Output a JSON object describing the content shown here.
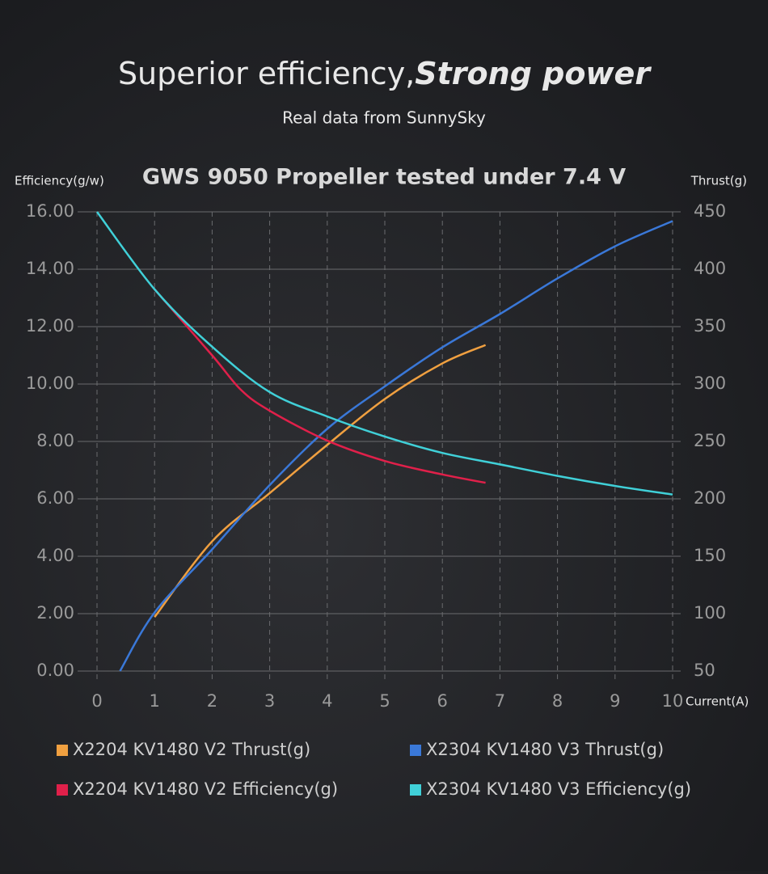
{
  "chart_data": {
    "type": "line",
    "title": "Superior efficiency,",
    "title_emphasis": "Strong power",
    "subtitle": "Real data from SunnySky",
    "chart_title": "GWS 9050 Propeller tested under 7.4 V",
    "y_label": "Efficiency(g/w)",
    "y2_label": "Thrust(g)",
    "x_label": "Current(A)",
    "xlim": [
      0,
      10
    ],
    "xticks": [
      0,
      1,
      2,
      3,
      4,
      5,
      6,
      7,
      8,
      9,
      10
    ],
    "ylim": [
      0,
      16
    ],
    "yticks": [
      {
        "value": 0,
        "label": "0.00"
      },
      {
        "value": 2,
        "label": "2.00"
      },
      {
        "value": 4,
        "label": "4.00"
      },
      {
        "value": 6,
        "label": "6.00"
      },
      {
        "value": 8,
        "label": "8.00"
      },
      {
        "value": 10,
        "label": "10.00"
      },
      {
        "value": 12,
        "label": "12.00"
      },
      {
        "value": 14,
        "label": "14.00"
      },
      {
        "value": 16,
        "label": "16.00"
      }
    ],
    "y2lim": [
      50,
      450
    ],
    "y2ticks": [
      50,
      100,
      150,
      200,
      250,
      300,
      350,
      400,
      450
    ],
    "grid": true,
    "series": [
      {
        "name": "X2204 KV1480 V2 Thrust(g)",
        "color": "#f0a040",
        "axis": "y2",
        "x": [
          1,
          2,
          3,
          4,
          5,
          6,
          6.75
        ],
        "values": [
          97,
          163,
          205,
          247,
          287,
          318,
          334
        ]
      },
      {
        "name": "X2304 KV1480 V3 Thrust(g)",
        "color": "#3a78d8",
        "axis": "y2",
        "x": [
          0.4,
          1,
          2,
          3,
          4,
          5,
          6,
          7,
          8,
          9,
          10
        ],
        "values": [
          50,
          101,
          156,
          212,
          261,
          298,
          332,
          361,
          392,
          420,
          442
        ]
      },
      {
        "name": "X2204 KV1480 V2 Efficiency(g)",
        "color": "#e0204a",
        "x": [
          1,
          2,
          2.5,
          3,
          4,
          5,
          6,
          6.75
        ],
        "values": [
          13.3,
          11.0,
          9.8,
          9.07,
          8.03,
          7.32,
          6.85,
          6.56
        ]
      },
      {
        "name": "X2304 KV1480 V3 Efficiency(g)",
        "color": "#40d0d8",
        "x": [
          0,
          1,
          2,
          3,
          4,
          5,
          6,
          7,
          8,
          9,
          10
        ],
        "values": [
          16.0,
          13.3,
          11.3,
          9.72,
          8.87,
          8.17,
          7.6,
          7.2,
          6.8,
          6.45,
          6.15
        ]
      }
    ]
  }
}
